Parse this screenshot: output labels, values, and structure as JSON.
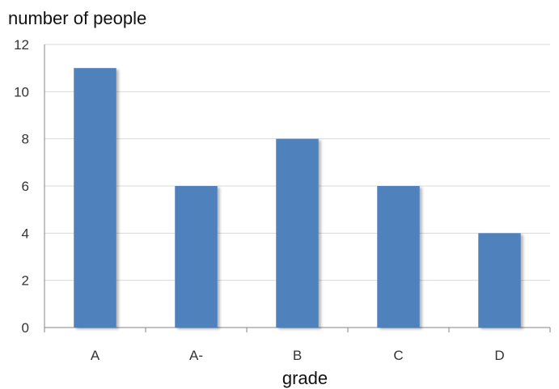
{
  "chart_data": {
    "type": "bar",
    "title": "",
    "xlabel": "grade",
    "ylabel": "number of people",
    "categories": [
      "A",
      "A-",
      "B",
      "C",
      "D"
    ],
    "values": [
      11,
      6,
      8,
      6,
      4
    ],
    "ylim": [
      0,
      12
    ],
    "yticks": [
      0,
      2,
      4,
      6,
      8,
      10,
      12
    ],
    "grid": true,
    "legend": "none",
    "colors": {
      "bar": "#4f81bd",
      "grid": "#d9d9d9",
      "axis": "#868686"
    }
  }
}
